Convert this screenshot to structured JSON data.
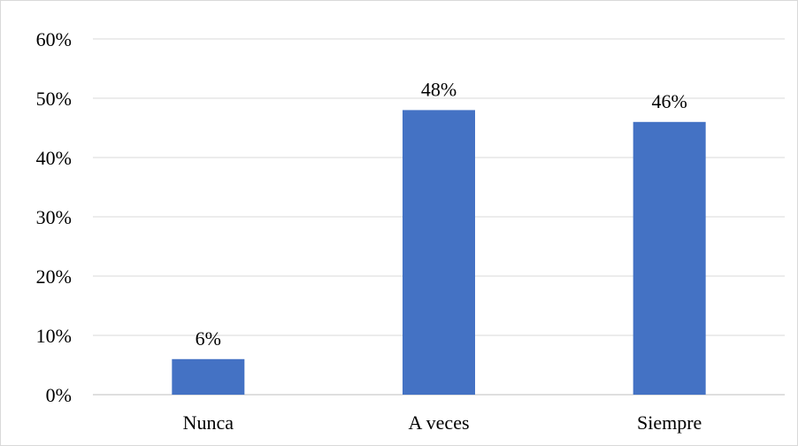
{
  "chart_data": {
    "type": "bar",
    "categories": [
      "Nunca",
      "A veces",
      "Siempre"
    ],
    "values": [
      6,
      48,
      46
    ],
    "data_labels": [
      "6%",
      "48%",
      "46%"
    ],
    "ylim": [
      0,
      60
    ],
    "y_ticks": [
      0,
      10,
      20,
      30,
      40,
      50,
      60
    ],
    "y_tick_labels": [
      "0%",
      "10%",
      "20%",
      "30%",
      "40%",
      "50%",
      "60%"
    ],
    "grid": true,
    "legend": "none",
    "colors": {
      "bar": "#4472c4",
      "grid": "#d9d9d9",
      "axis": "#bfbfbf"
    }
  }
}
